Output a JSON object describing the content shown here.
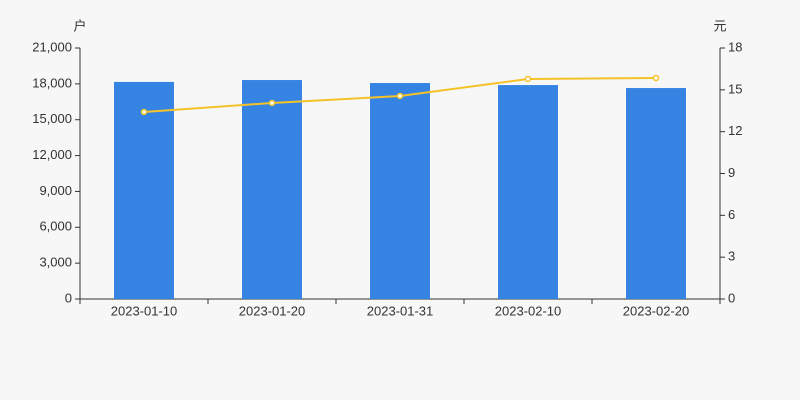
{
  "chart_data": {
    "type": "bar",
    "y_unit": "户",
    "y2_unit": "元",
    "categories": [
      "2023-01-10",
      "2023-01-20",
      "2023-01-31",
      "2023-02-10",
      "2023-02-20"
    ],
    "series": [
      {
        "type": "bar",
        "color": "#3584e4",
        "values": [
          18160,
          18320,
          18070,
          17900,
          17650
        ]
      },
      {
        "type": "line",
        "axis": "y2",
        "color": "#f5c228",
        "values": [
          13.41,
          14.06,
          14.56,
          15.78,
          15.85
        ]
      }
    ],
    "ylim": [
      0,
      21000
    ],
    "yticks": [
      0,
      {
        "value": 3000,
        "label": "3,000"
      },
      {
        "value": 6000,
        "label": "6,000"
      },
      {
        "value": 9000,
        "label": "9,000"
      },
      {
        "value": 12000,
        "label": "12,000"
      },
      {
        "value": 15000,
        "label": "15,000"
      },
      {
        "value": 18000,
        "label": "18,000"
      },
      {
        "value": 21000,
        "label": "21,000"
      }
    ],
    "y2lim": [
      0,
      18
    ],
    "y2ticks": [
      0,
      3,
      6,
      9,
      12,
      15,
      18
    ]
  }
}
